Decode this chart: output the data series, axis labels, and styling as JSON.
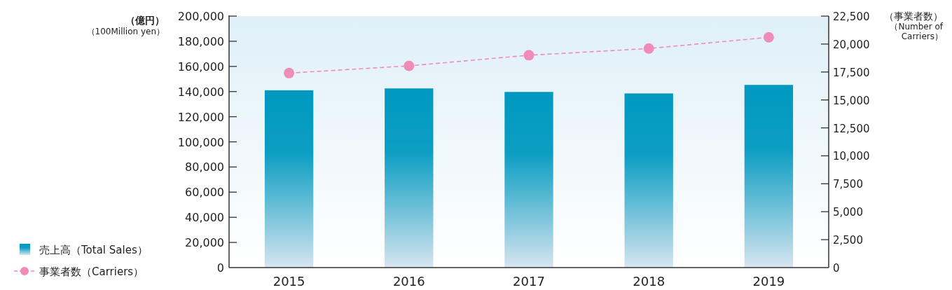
{
  "chart_data": {
    "type": "bar",
    "categories": [
      "2015",
      "2016",
      "2017",
      "2018",
      "2019"
    ],
    "series": [
      {
        "name": "売上高（Total Sales）",
        "color": "#0099c0",
        "values": [
          141000,
          142500,
          139700,
          138500,
          145300
        ]
      },
      {
        "name": "事業者数（Carriers）",
        "type": "line",
        "axis": "y2",
        "color": "#f08cb8",
        "marker": "circle",
        "line_style": "dashed",
        "values": [
          17400,
          18050,
          19000,
          19600,
          20600
        ]
      }
    ],
    "ylabel": "（億円）（100Million yen）",
    "y2label": "（事業者数）（Number of Carriers）",
    "ylim": [
      0,
      200000
    ],
    "yticks": [
      {
        "value": 0,
        "label": "0"
      },
      {
        "value": 20000,
        "label": "20,000"
      },
      {
        "value": 40000,
        "label": "40,000"
      },
      {
        "value": 60000,
        "label": "60,000"
      },
      {
        "value": 80000,
        "label": "80,000"
      },
      {
        "value": 100000,
        "label": "100,000"
      },
      {
        "value": 120000,
        "label": "120,000"
      },
      {
        "value": 140000,
        "label": "140,000"
      },
      {
        "value": 160000,
        "label": "160,000"
      },
      {
        "value": 180000,
        "label": "180,000"
      },
      {
        "value": 200000,
        "label": "200,000"
      }
    ],
    "y2lim": [
      0,
      22500
    ],
    "y2ticks": [
      {
        "value": 0,
        "label": "0"
      },
      {
        "value": 2500,
        "label": "2,500"
      },
      {
        "value": 5000,
        "label": "5,000"
      },
      {
        "value": 7500,
        "label": "7,500"
      },
      {
        "value": 10000,
        "label": "10,000"
      },
      {
        "value": 12500,
        "label": "12,500"
      },
      {
        "value": 15000,
        "label": "15,000"
      },
      {
        "value": 17500,
        "label": "17,500"
      },
      {
        "value": 20000,
        "label": "20,000"
      },
      {
        "value": 22500,
        "label": "22,500"
      }
    ],
    "legend": "bottom left"
  }
}
